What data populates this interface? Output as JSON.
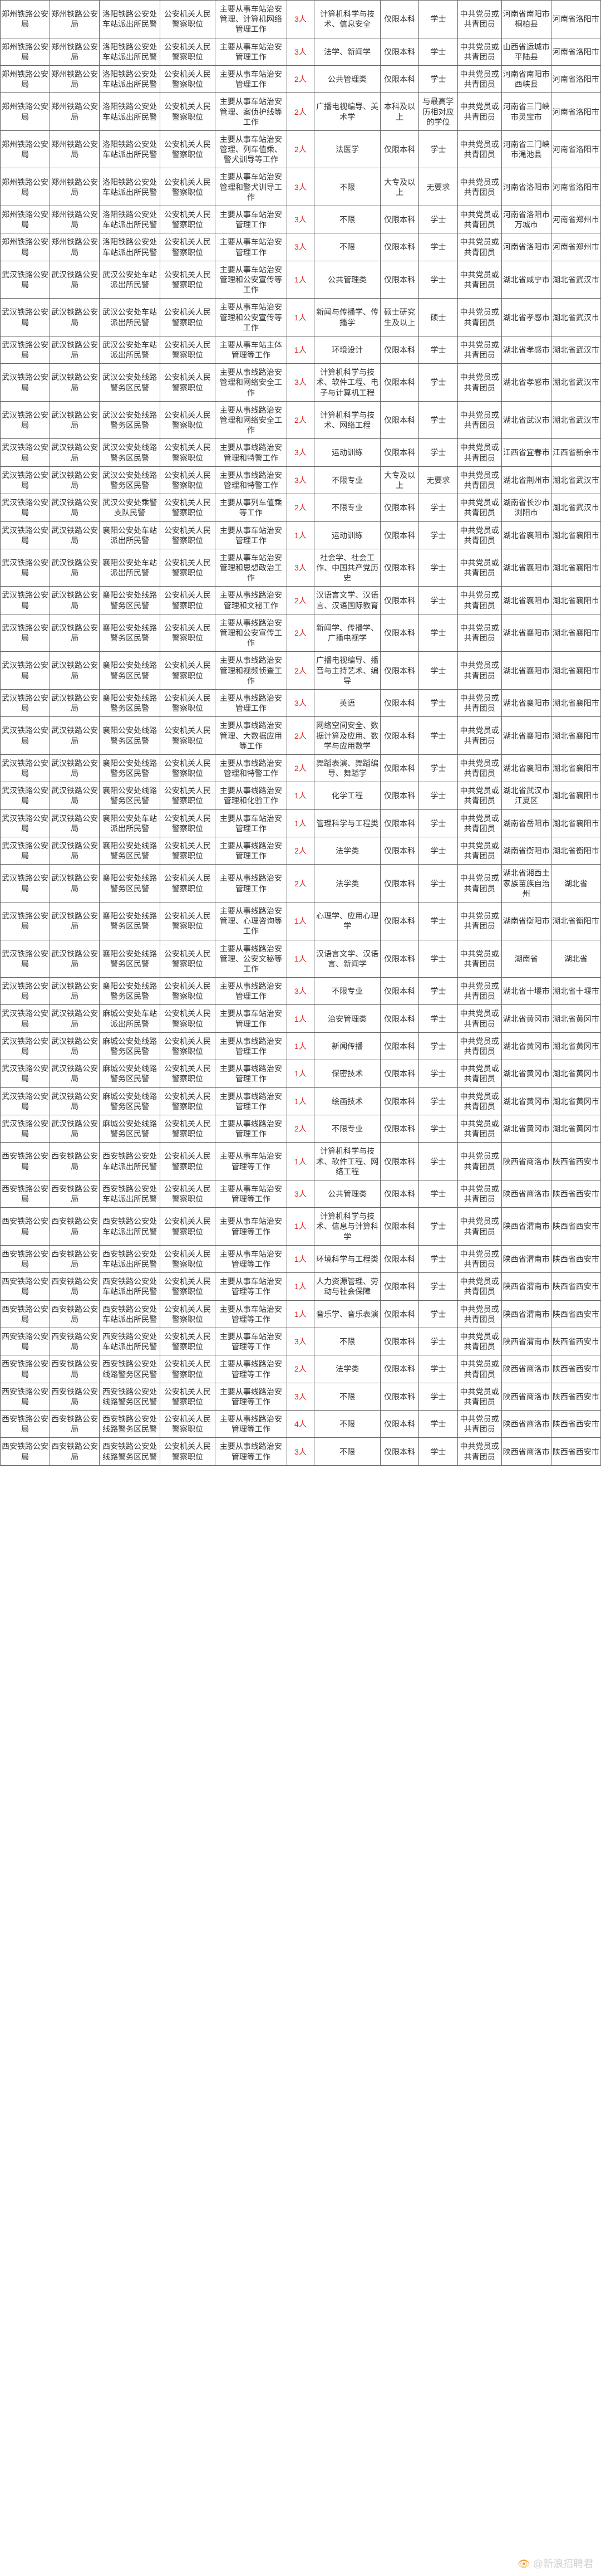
{
  "table": {
    "column_widths": [
      "9%",
      "9%",
      "11%",
      "10%",
      "13%",
      "5%",
      "12%",
      "7%",
      "7%",
      "8%",
      "9%",
      "9%"
    ],
    "border_color": "#666666",
    "text_color": "#333333",
    "count_color": "#d9241a",
    "background_color": "#ffffff",
    "font_size": 14,
    "rows": [
      [
        "郑州铁路公安局",
        "郑州铁路公安局",
        "洛阳铁路公安处车站派出所民警",
        "公安机关人民警察职位",
        "主要从事车站治安管理、计算机网络管理工作",
        "3人",
        "计算机科学与技术、信息安全",
        "仅限本科",
        "学士",
        "中共党员或共青团员",
        "河南省南阳市桐柏县",
        "河南省洛阳市"
      ],
      [
        "郑州铁路公安局",
        "郑州铁路公安局",
        "洛阳铁路公安处车站派出所民警",
        "公安机关人民警察职位",
        "主要从事车站治安管理工作",
        "3人",
        "法学、新闻学",
        "仅限本科",
        "学士",
        "中共党员或共青团员",
        "山西省运城市平陆县",
        "河南省洛阳市"
      ],
      [
        "郑州铁路公安局",
        "郑州铁路公安局",
        "洛阳铁路公安处车站派出所民警",
        "公安机关人民警察职位",
        "主要从事车站治安管理工作",
        "2人",
        "公共管理类",
        "仅限本科",
        "学士",
        "中共党员或共青团员",
        "河南省南阳市西峡县",
        "河南省洛阳市"
      ],
      [
        "郑州铁路公安局",
        "郑州铁路公安局",
        "洛阳铁路公安处车站派出所民警",
        "公安机关人民警察职位",
        "主要从事车站治安管理、案侦护线等工作",
        "2人",
        "广播电视编导、美术学",
        "本科及以上",
        "与最高学历相对应的学位",
        "中共党员或共青团员",
        "河南省三门峡市灵宝市",
        "河南省洛阳市"
      ],
      [
        "郑州铁路公安局",
        "郑州铁路公安局",
        "洛阳铁路公安处车站派出所民警",
        "公安机关人民警察职位",
        "主要从事车站治安管理、列车值乘、警犬训导等工作",
        "2人",
        "法医学",
        "仅限本科",
        "学士",
        "中共党员或共青团员",
        "河南省三门峡市渑池县",
        "河南省洛阳市"
      ],
      [
        "郑州铁路公安局",
        "郑州铁路公安局",
        "洛阳铁路公安处车站派出所民警",
        "公安机关人民警察职位",
        "主要从事车站治安管理和警犬训导工作",
        "3人",
        "不限",
        "大专及以上",
        "无要求",
        "中共党员或共青团员",
        "河南省洛阳市",
        "河南省洛阳市"
      ],
      [
        "郑州铁路公安局",
        "郑州铁路公安局",
        "洛阳铁路公安处车站派出所民警",
        "公安机关人民警察职位",
        "主要从事车站治安管理工作",
        "3人",
        "不限",
        "仅限本科",
        "学士",
        "中共党员或共青团员",
        "河南省洛阳市万城市",
        "河南省郑州市"
      ],
      [
        "郑州铁路公安局",
        "郑州铁路公安局",
        "洛阳铁路公安处车站派出所民警",
        "公安机关人民警察职位",
        "主要从事车站治安管理工作",
        "3人",
        "不限",
        "仅限本科",
        "学士",
        "中共党员或共青团员",
        "河南省洛阳市",
        "河南省郑州市"
      ],
      [
        "武汉铁路公安局",
        "武汉铁路公安局",
        "武汉公安处车站派出所民警",
        "公安机关人民警察职位",
        "主要从事车站治安管理和公安宣传等工作",
        "1人",
        "公共管理类",
        "仅限本科",
        "学士",
        "中共党员或共青团员",
        "湖北省咸宁市",
        "湖北省武汉市"
      ],
      [
        "武汉铁路公安局",
        "武汉铁路公安局",
        "武汉公安处车站派出所民警",
        "公安机关人民警察职位",
        "主要从事车站治安管理和公安宣传等工作",
        "1人",
        "新闻与传播学、传播学",
        "硕士研究生及以上",
        "硕士",
        "中共党员或共青团员",
        "湖北省孝感市",
        "湖北省武汉市"
      ],
      [
        "武汉铁路公安局",
        "武汉铁路公安局",
        "武汉公安处车站派出所民警",
        "公安机关人民警察职位",
        "主要从事车站主体管理等工作",
        "1人",
        "环境设计",
        "仅限本科",
        "学士",
        "中共党员或共青团员",
        "湖北省孝感市",
        "湖北省武汉市"
      ],
      [
        "武汉铁路公安局",
        "武汉铁路公安局",
        "武汉公安处线路警务区民警",
        "公安机关人民警察职位",
        "主要从事线路治安管理和网络安全工作",
        "3人",
        "计算机科学与技术、软件工程、电子与计算机工程",
        "仅限本科",
        "学士",
        "中共党员或共青团员",
        "湖北省孝感市",
        "湖北省武汉市"
      ],
      [
        "武汉铁路公安局",
        "武汉铁路公安局",
        "武汉公安处线路警务区民警",
        "公安机关人民警察职位",
        "主要从事线路治安管理和网络安全工作",
        "2人",
        "计算机科学与技术、网络工程",
        "仅限本科",
        "学士",
        "中共党员或共青团员",
        "湖北省武汉市",
        "湖北省武汉市"
      ],
      [
        "武汉铁路公安局",
        "武汉铁路公安局",
        "武汉公安处线路警务区民警",
        "公安机关人民警察职位",
        "主要从事线路治安管理和特警工作",
        "3人",
        "运动训练",
        "仅限本科",
        "学士",
        "中共党员或共青团员",
        "江西省宜春市",
        "江西省新余市"
      ],
      [
        "武汉铁路公安局",
        "武汉铁路公安局",
        "武汉公安处线路警务区民警",
        "公安机关人民警察职位",
        "主要从事线路治安管理和特警工作",
        "3人",
        "不限专业",
        "大专及以上",
        "无要求",
        "中共党员或共青团员",
        "湖北省荆州市",
        "湖北省武汉市"
      ],
      [
        "武汉铁路公安局",
        "武汉铁路公安局",
        "武汉公安处乘警支队民警",
        "公安机关人民警察职位",
        "主要从事列车值乘等工作",
        "2人",
        "不限专业",
        "仅限本科",
        "学士",
        "中共党员或共青团员",
        "湖南省长沙市浏阳市",
        "湖北省武汉市"
      ],
      [
        "武汉铁路公安局",
        "武汉铁路公安局",
        "襄阳公安处车站派出所民警",
        "公安机关人民警察职位",
        "主要从事车站治安管理工作",
        "1人",
        "运动训练",
        "仅限本科",
        "学士",
        "中共党员或共青团员",
        "湖北省襄阳市",
        "湖北省襄阳市"
      ],
      [
        "武汉铁路公安局",
        "武汉铁路公安局",
        "襄阳公安处车站派出所民警",
        "公安机关人民警察职位",
        "主要从事车站治安管理和思想政治工作",
        "3人",
        "社会学、社会工作、中国共产党历史",
        "仅限本科",
        "学士",
        "中共党员或共青团员",
        "湖北省襄阳市",
        "湖北省襄阳市"
      ],
      [
        "武汉铁路公安局",
        "武汉铁路公安局",
        "襄阳公安处线路警务区民警",
        "公安机关人民警察职位",
        "主要从事线路治安管理和文秘工作",
        "2人",
        "汉语言文学、汉语言、汉语国际教育",
        "仅限本科",
        "学士",
        "中共党员或共青团员",
        "湖北省襄阳市",
        "湖北省襄阳市"
      ],
      [
        "武汉铁路公安局",
        "武汉铁路公安局",
        "襄阳公安处线路警务区民警",
        "公安机关人民警察职位",
        "主要从事线路治安管理和公安宣传工作",
        "2人",
        "新闻学、传播学、广播电视学",
        "仅限本科",
        "学士",
        "中共党员或共青团员",
        "湖北省襄阳市",
        "湖北省襄阳市"
      ],
      [
        "武汉铁路公安局",
        "武汉铁路公安局",
        "襄阳公安处线路警务区民警",
        "公安机关人民警察职位",
        "主要从事线路治安管理和视频侦查工作",
        "2人",
        "广播电视编导、播音与主持艺术、编导",
        "仅限本科",
        "学士",
        "中共党员或共青团员",
        "湖北省襄阳市",
        "湖北省襄阳市"
      ],
      [
        "武汉铁路公安局",
        "武汉铁路公安局",
        "襄阳公安处线路警务区民警",
        "公安机关人民警察职位",
        "主要从事线路治安管理工作",
        "3人",
        "英语",
        "仅限本科",
        "学士",
        "中共党员或共青团员",
        "湖北省襄阳市",
        "湖北省襄阳市"
      ],
      [
        "武汉铁路公安局",
        "武汉铁路公安局",
        "襄阳公安处线路警务区民警",
        "公安机关人民警察职位",
        "主要从事线路治安管理、大数据应用等工作",
        "2人",
        "网络空间安全、数据计算及应用、数学与应用数学",
        "仅限本科",
        "学士",
        "中共党员或共青团员",
        "湖北省襄阳市",
        "湖北省襄阳市"
      ],
      [
        "武汉铁路公安局",
        "武汉铁路公安局",
        "襄阳公安处线路警务区民警",
        "公安机关人民警察职位",
        "主要从事线路治安管理和特警工作",
        "2人",
        "舞蹈表演、舞蹈编导、舞蹈学",
        "仅限本科",
        "学士",
        "中共党员或共青团员",
        "湖北省襄阳市",
        "湖北省襄阳市"
      ],
      [
        "武汉铁路公安局",
        "武汉铁路公安局",
        "襄阳公安处线路警务区民警",
        "公安机关人民警察职位",
        "主要从事线路治安管理和化验工作",
        "1人",
        "化学工程",
        "仅限本科",
        "学士",
        "中共党员或共青团员",
        "湖北省武汉市江夏区",
        "湖北省襄阳市"
      ],
      [
        "武汉铁路公安局",
        "武汉铁路公安局",
        "襄阳公安处车站派出所民警",
        "公安机关人民警察职位",
        "主要从事车站治安管理工作",
        "1人",
        "管理科学与工程类",
        "仅限本科",
        "学士",
        "中共党员或共青团员",
        "湖南省岳阳市",
        "湖北省襄阳市"
      ],
      [
        "武汉铁路公安局",
        "武汉铁路公安局",
        "襄阳公安处线路警务区民警",
        "公安机关人民警察职位",
        "主要从事线路治安管理工作",
        "2人",
        "法学类",
        "仅限本科",
        "学士",
        "中共党员或共青团员",
        "湖南省衡阳市",
        "湖北省衡阳市"
      ],
      [
        "武汉铁路公安局",
        "武汉铁路公安局",
        "襄阳公安处线路警务区民警",
        "公安机关人民警察职位",
        "主要从事线路治安管理工作",
        "2人",
        "法学类",
        "仅限本科",
        "学士",
        "中共党员或共青团员",
        "湖北省湘西土家族苗族自治州",
        "湖北省"
      ],
      [
        "武汉铁路公安局",
        "武汉铁路公安局",
        "襄阳公安处线路警务区民警",
        "公安机关人民警察职位",
        "主要从事线路治安管理、心理咨询等工作",
        "1人",
        "心理学、应用心理学",
        "仅限本科",
        "学士",
        "中共党员或共青团员",
        "湖南省衡阳市",
        "湖北省衡阳市"
      ],
      [
        "武汉铁路公安局",
        "武汉铁路公安局",
        "襄阳公安处线路警务区民警",
        "公安机关人民警察职位",
        "主要从事线路治安管理、公安文秘等工作",
        "1人",
        "汉语言文学、汉语言、新闻学",
        "仅限本科",
        "学士",
        "中共党员或共青团员",
        "湖南省",
        "湖北省"
      ],
      [
        "武汉铁路公安局",
        "武汉铁路公安局",
        "襄阳公安处线路警务区民警",
        "公安机关人民警察职位",
        "主要从事线路治安管理工作",
        "3人",
        "不限专业",
        "仅限本科",
        "学士",
        "中共党员或共青团员",
        "湖北省十堰市",
        "湖北省十堰市"
      ],
      [
        "武汉铁路公安局",
        "武汉铁路公安局",
        "麻城公安处车站派出所民警",
        "公安机关人民警察职位",
        "主要从事车站治安管理工作",
        "1人",
        "治安管理类",
        "仅限本科",
        "学士",
        "中共党员或共青团员",
        "湖北省黄冈市",
        "湖北省黄冈市"
      ],
      [
        "武汉铁路公安局",
        "武汉铁路公安局",
        "麻城公安处线路警务区民警",
        "公安机关人民警察职位",
        "主要从事线路治安管理工作",
        "1人",
        "新闻传播",
        "仅限本科",
        "学士",
        "中共党员或共青团员",
        "湖北省黄冈市",
        "湖北省黄冈市"
      ],
      [
        "武汉铁路公安局",
        "武汉铁路公安局",
        "麻城公安处线路警务区民警",
        "公安机关人民警察职位",
        "主要从事线路治安管理工作",
        "1人",
        "保密技术",
        "仅限本科",
        "学士",
        "中共党员或共青团员",
        "湖北省黄冈市",
        "湖北省黄冈市"
      ],
      [
        "武汉铁路公安局",
        "武汉铁路公安局",
        "麻城公安处线路警务区民警",
        "公安机关人民警察职位",
        "主要从事线路治安管理工作",
        "1人",
        "绘画技术",
        "仅限本科",
        "学士",
        "中共党员或共青团员",
        "湖北省黄冈市",
        "湖北省黄冈市"
      ],
      [
        "武汉铁路公安局",
        "武汉铁路公安局",
        "麻城公安处线路警务区民警",
        "公安机关人民警察职位",
        "主要从事线路治安管理工作",
        "2人",
        "不限专业",
        "仅限本科",
        "学士",
        "中共党员或共青团员",
        "湖北省黄冈市",
        "湖北省黄冈市"
      ],
      [
        "西安铁路公安局",
        "西安铁路公安局",
        "西安铁路公安处车站派出所民警",
        "公安机关人民警察职位",
        "主要从事车站治安管理等工作",
        "1人",
        "计算机科学与技术、软件工程、网络工程",
        "仅限本科",
        "学士",
        "中共党员或共青团员",
        "陕西省商洛市",
        "陕西省西安市"
      ],
      [
        "西安铁路公安局",
        "西安铁路公安局",
        "西安铁路公安处车站派出所民警",
        "公安机关人民警察职位",
        "主要从事车站治安管理等工作",
        "3人",
        "公共管理类",
        "仅限本科",
        "学士",
        "中共党员或共青团员",
        "陕西省商洛市",
        "陕西省西安市"
      ],
      [
        "西安铁路公安局",
        "西安铁路公安局",
        "西安铁路公安处车站派出所民警",
        "公安机关人民警察职位",
        "主要从事车站治安管理等工作",
        "1人",
        "计算机科学与技术、信息与计算科学",
        "仅限本科",
        "学士",
        "中共党员或共青团员",
        "陕西省渭南市",
        "陕西省西安市"
      ],
      [
        "西安铁路公安局",
        "西安铁路公安局",
        "西安铁路公安处车站派出所民警",
        "公安机关人民警察职位",
        "主要从事车站治安管理等工作",
        "1人",
        "环境科学与工程类",
        "仅限本科",
        "学士",
        "中共党员或共青团员",
        "陕西省渭南市",
        "陕西省西安市"
      ],
      [
        "西安铁路公安局",
        "西安铁路公安局",
        "西安铁路公安处车站派出所民警",
        "公安机关人民警察职位",
        "主要从事车站治安管理等工作",
        "1人",
        "人力资源管理、劳动与社会保障",
        "仅限本科",
        "学士",
        "中共党员或共青团员",
        "陕西省渭南市",
        "陕西省西安市"
      ],
      [
        "西安铁路公安局",
        "西安铁路公安局",
        "西安铁路公安处车站派出所民警",
        "公安机关人民警察职位",
        "主要从事车站治安管理等工作",
        "1人",
        "音乐学、音乐表演",
        "仅限本科",
        "学士",
        "中共党员或共青团员",
        "陕西省渭南市",
        "陕西省西安市"
      ],
      [
        "西安铁路公安局",
        "西安铁路公安局",
        "西安铁路公安处车站派出所民警",
        "公安机关人民警察职位",
        "主要从事车站治安管理等工作",
        "3人",
        "不限",
        "仅限本科",
        "学士",
        "中共党员或共青团员",
        "陕西省渭南市",
        "陕西省西安市"
      ],
      [
        "西安铁路公安局",
        "西安铁路公安局",
        "西安铁路公安处线路警务区民警",
        "公安机关人民警察职位",
        "主要从事线路治安管理等工作",
        "2人",
        "法学类",
        "仅限本科",
        "学士",
        "中共党员或共青团员",
        "陕西省商洛市",
        "陕西省西安市"
      ],
      [
        "西安铁路公安局",
        "西安铁路公安局",
        "西安铁路公安处线路警务区民警",
        "公安机关人民警察职位",
        "主要从事线路治安管理等工作",
        "3人",
        "不限",
        "仅限本科",
        "学士",
        "中共党员或共青团员",
        "陕西省商洛市",
        "陕西省西安市"
      ],
      [
        "西安铁路公安局",
        "西安铁路公安局",
        "西安铁路公安处线路警务区民警",
        "公安机关人民警察职位",
        "主要从事线路治安管理等工作",
        "4人",
        "不限",
        "仅限本科",
        "学士",
        "中共党员或共青团员",
        "陕西省商洛市",
        "陕西省西安市"
      ],
      [
        "西安铁路公安局",
        "西安铁路公安局",
        "西安铁路公安处线路警务区民警",
        "公安机关人民警察职位",
        "主要从事线路治安管理等工作",
        "3人",
        "不限",
        "仅限本科",
        "学士",
        "中共党员或共青团员",
        "陕西省商洛市",
        "陕西省西安市"
      ]
    ]
  },
  "watermark": {
    "text": "@新浪招聘君"
  }
}
